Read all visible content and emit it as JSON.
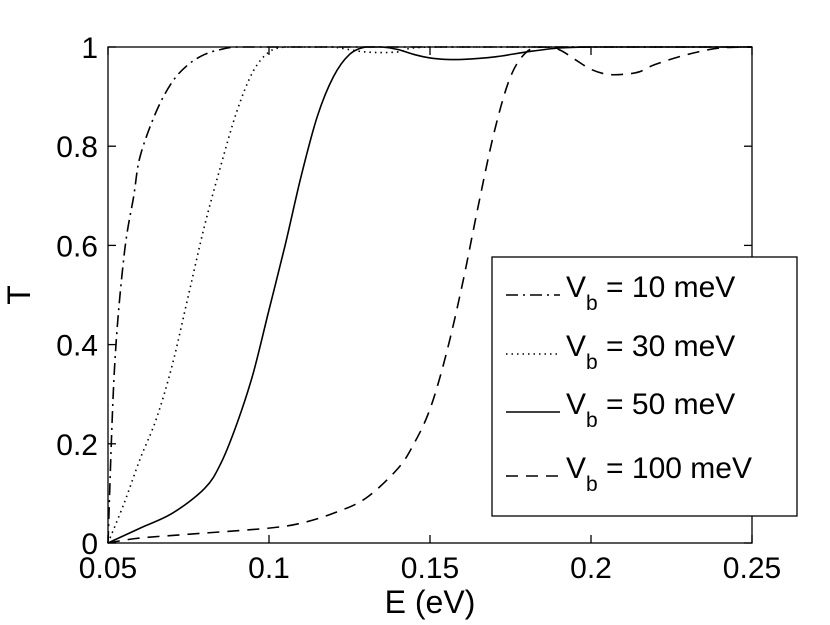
{
  "chart_data": {
    "type": "line",
    "title": "",
    "xlabel": "E (eV)",
    "ylabel": "T",
    "xlim": [
      0.05,
      0.25
    ],
    "ylim": [
      0,
      1
    ],
    "xticks": [
      0.05,
      0.1,
      0.15,
      0.2,
      0.25
    ],
    "xtick_labels": [
      "0.05",
      "0.1",
      "0.15",
      "0.2",
      "0.25"
    ],
    "yticks": [
      0,
      0.2,
      0.4,
      0.6,
      0.8,
      1
    ],
    "ytick_labels": [
      "0",
      "0.2",
      "0.4",
      "0.6",
      "0.8",
      "1"
    ],
    "grid": false,
    "legend_position": "right",
    "series": [
      {
        "name": "V_b = 10 meV",
        "label_main": "V",
        "label_sub": "b",
        "label_rest": " = 10 meV",
        "style": "dashdot",
        "x": [
          0.05,
          0.052,
          0.055,
          0.058,
          0.06,
          0.065,
          0.07,
          0.075,
          0.08,
          0.085,
          0.09,
          0.1,
          0.12,
          0.15,
          0.2,
          0.25
        ],
        "y": [
          0.0,
          0.35,
          0.58,
          0.7,
          0.78,
          0.87,
          0.93,
          0.965,
          0.985,
          0.995,
          1.0,
          1.0,
          1.0,
          1.0,
          1.0,
          1.0
        ]
      },
      {
        "name": "V_b = 30 meV",
        "label_main": "V",
        "label_sub": "b",
        "label_rest": " = 30 meV",
        "style": "dotted",
        "x": [
          0.05,
          0.055,
          0.06,
          0.065,
          0.07,
          0.075,
          0.08,
          0.085,
          0.09,
          0.095,
          0.1,
          0.105,
          0.11,
          0.115,
          0.12,
          0.13,
          0.14,
          0.15,
          0.2,
          0.25
        ],
        "y": [
          0.0,
          0.08,
          0.17,
          0.25,
          0.36,
          0.5,
          0.64,
          0.76,
          0.87,
          0.95,
          0.99,
          1.0,
          1.0,
          1.0,
          1.0,
          0.99,
          0.99,
          1.0,
          1.0,
          1.0
        ]
      },
      {
        "name": "V_b = 50 meV",
        "label_main": "V",
        "label_sub": "b",
        "label_rest": " = 50 meV",
        "style": "solid",
        "x": [
          0.05,
          0.06,
          0.07,
          0.08,
          0.085,
          0.09,
          0.095,
          0.1,
          0.105,
          0.11,
          0.115,
          0.12,
          0.125,
          0.13,
          0.135,
          0.14,
          0.145,
          0.15,
          0.155,
          0.16,
          0.17,
          0.18,
          0.19,
          0.2,
          0.22,
          0.25
        ],
        "y": [
          0.0,
          0.03,
          0.06,
          0.11,
          0.16,
          0.24,
          0.34,
          0.47,
          0.6,
          0.74,
          0.86,
          0.94,
          0.985,
          1.0,
          1.0,
          0.995,
          0.985,
          0.978,
          0.975,
          0.975,
          0.98,
          0.99,
          0.998,
          1.0,
          1.0,
          1.0
        ]
      },
      {
        "name": "V_b = 100 meV",
        "label_main": "V",
        "label_sub": "b",
        "label_rest": " = 100 meV",
        "style": "dashed",
        "x": [
          0.05,
          0.06,
          0.08,
          0.1,
          0.11,
          0.12,
          0.13,
          0.14,
          0.145,
          0.15,
          0.155,
          0.16,
          0.165,
          0.17,
          0.175,
          0.18,
          0.185,
          0.19,
          0.195,
          0.2,
          0.205,
          0.21,
          0.215,
          0.22,
          0.23,
          0.24,
          0.25
        ],
        "y": [
          0.0,
          0.01,
          0.02,
          0.03,
          0.04,
          0.06,
          0.09,
          0.15,
          0.2,
          0.27,
          0.38,
          0.52,
          0.68,
          0.83,
          0.94,
          0.99,
          1.0,
          0.995,
          0.975,
          0.955,
          0.945,
          0.945,
          0.95,
          0.965,
          0.985,
          0.998,
          1.0
        ]
      }
    ]
  }
}
